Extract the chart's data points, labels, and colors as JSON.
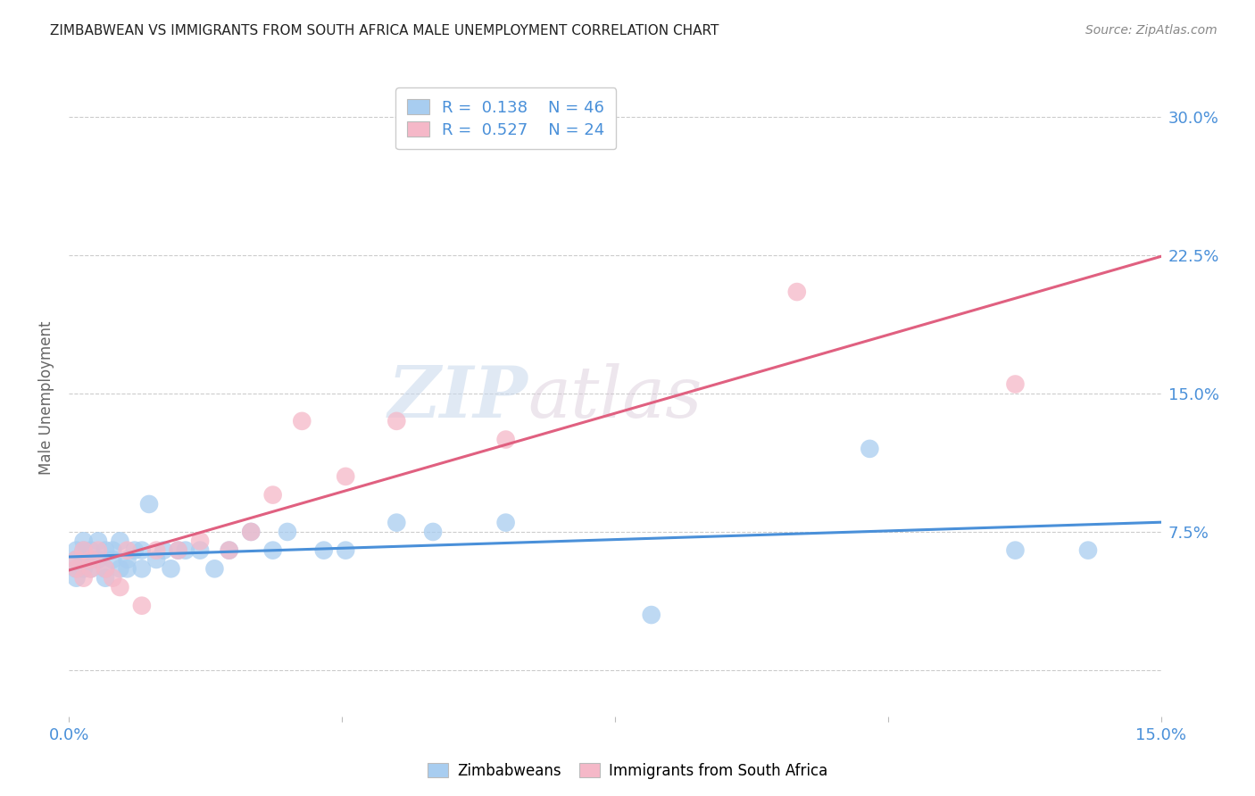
{
  "title": "ZIMBABWEAN VS IMMIGRANTS FROM SOUTH AFRICA MALE UNEMPLOYMENT CORRELATION CHART",
  "source": "Source: ZipAtlas.com",
  "ylabel": "Male Unemployment",
  "ytick_labels": [
    "",
    "7.5%",
    "15.0%",
    "22.5%",
    "30.0%"
  ],
  "ytick_values": [
    0.0,
    0.075,
    0.15,
    0.225,
    0.3
  ],
  "xlim": [
    0.0,
    0.15
  ],
  "ylim": [
    -0.025,
    0.32
  ],
  "watermark_zip": "ZIP",
  "watermark_atlas": "atlas",
  "blue_color": "#a8cdf0",
  "pink_color": "#f5b8c8",
  "blue_line_color": "#4a90d9",
  "pink_line_color": "#e06080",
  "legend_blue_R": "0.138",
  "legend_blue_N": "46",
  "legend_pink_R": "0.527",
  "legend_pink_N": "24",
  "zim_x": [
    0.001,
    0.001,
    0.001,
    0.001,
    0.002,
    0.002,
    0.002,
    0.002,
    0.003,
    0.003,
    0.003,
    0.004,
    0.004,
    0.005,
    0.005,
    0.005,
    0.006,
    0.006,
    0.007,
    0.007,
    0.008,
    0.008,
    0.009,
    0.01,
    0.01,
    0.011,
    0.012,
    0.013,
    0.014,
    0.015,
    0.016,
    0.018,
    0.02,
    0.022,
    0.025,
    0.028,
    0.03,
    0.035,
    0.038,
    0.045,
    0.05,
    0.06,
    0.08,
    0.11,
    0.13,
    0.14
  ],
  "zim_y": [
    0.06,
    0.065,
    0.055,
    0.05,
    0.065,
    0.06,
    0.055,
    0.07,
    0.06,
    0.065,
    0.055,
    0.07,
    0.06,
    0.065,
    0.055,
    0.05,
    0.065,
    0.06,
    0.055,
    0.07,
    0.06,
    0.055,
    0.065,
    0.055,
    0.065,
    0.09,
    0.06,
    0.065,
    0.055,
    0.065,
    0.065,
    0.065,
    0.055,
    0.065,
    0.075,
    0.065,
    0.075,
    0.065,
    0.065,
    0.08,
    0.075,
    0.08,
    0.03,
    0.12,
    0.065,
    0.065
  ],
  "sa_x": [
    0.001,
    0.001,
    0.002,
    0.002,
    0.003,
    0.003,
    0.004,
    0.005,
    0.006,
    0.007,
    0.008,
    0.01,
    0.012,
    0.015,
    0.018,
    0.022,
    0.025,
    0.028,
    0.032,
    0.038,
    0.045,
    0.06,
    0.1,
    0.13
  ],
  "sa_y": [
    0.055,
    0.06,
    0.065,
    0.05,
    0.06,
    0.055,
    0.065,
    0.055,
    0.05,
    0.045,
    0.065,
    0.035,
    0.065,
    0.065,
    0.07,
    0.065,
    0.075,
    0.095,
    0.135,
    0.105,
    0.135,
    0.125,
    0.205,
    0.155
  ]
}
